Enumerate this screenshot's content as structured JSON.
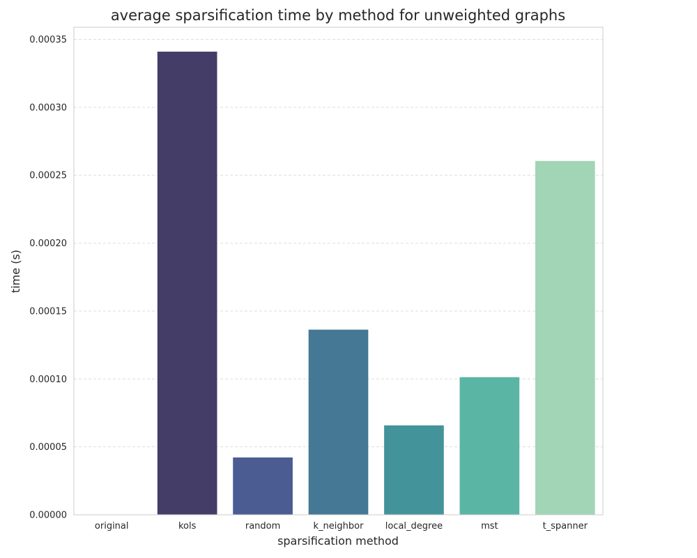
{
  "chart_data": {
    "type": "bar",
    "title": "average sparsification time by method for unweighted graphs",
    "xlabel": "sparsification method",
    "ylabel": "time (s)",
    "categories": [
      "original",
      "kols",
      "random",
      "k_neighbor",
      "local_degree",
      "mst",
      "t_spanner"
    ],
    "values": [
      0.0,
      0.000341,
      4.22e-05,
      0.0001363,
      6.58e-05,
      0.0001013,
      0.0002605
    ],
    "colors": [
      "#3a3163",
      "#433d68",
      "#4a5c92",
      "#457894",
      "#43939a",
      "#5ab5a5",
      "#a2d4b6"
    ],
    "yticks": [
      "0.00000",
      "0.00005",
      "0.00010",
      "0.00015",
      "0.00020",
      "0.00025",
      "0.00030",
      "0.00035"
    ],
    "ylim": [
      0,
      0.000359
    ],
    "grid": "y-axis dashed",
    "legend": "none"
  }
}
